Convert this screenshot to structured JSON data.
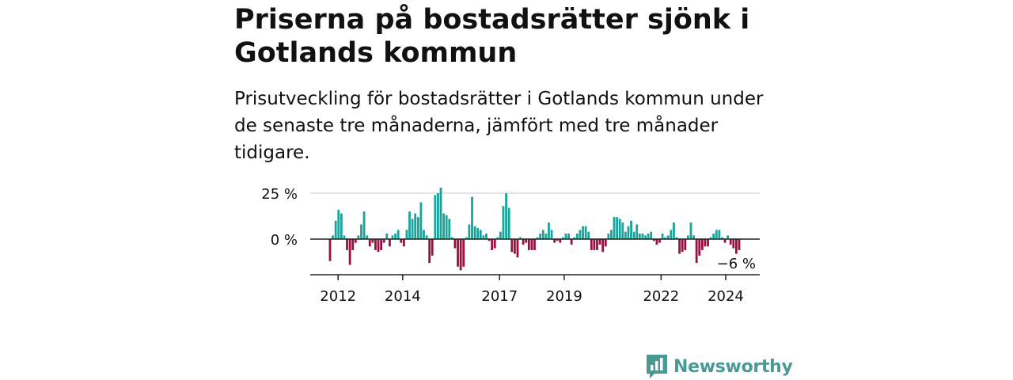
{
  "title": "Priserna på bostadsrätter sjönk i Gotlands kommun",
  "subtitle": "Prisutveckling för bostadsrätter i Gotlands kommun under de senaste tre månaderna, jämfört med tre månader tidigare.",
  "brand": {
    "name": "Newsworthy",
    "color": "#4a9a93",
    "icon": "newsworthy-logo-icon"
  },
  "chart_data": {
    "type": "bar",
    "x_start": "2011-10",
    "x_end": "2024-06",
    "x_ticks": [
      {
        "label": "2012",
        "x": 2012.0
      },
      {
        "label": "2014",
        "x": 2014.0
      },
      {
        "label": "2017",
        "x": 2017.0
      },
      {
        "label": "2019",
        "x": 2019.0
      },
      {
        "label": "2022",
        "x": 2022.0
      },
      {
        "label": "2024",
        "x": 2024.0
      }
    ],
    "y_ticks": [
      {
        "label": "25 %",
        "value": 25
      },
      {
        "label": "0 %",
        "value": 0
      }
    ],
    "ylim": [
      -20,
      27
    ],
    "last_value_label": "−6 %",
    "colors": {
      "positive": "#1aa39a",
      "negative": "#9b0f3f"
    },
    "values": [
      -12,
      2,
      10,
      16,
      14,
      2,
      -6,
      -14,
      -6,
      -2,
      2,
      8,
      15,
      2,
      -4,
      -2,
      -6,
      -7,
      -6,
      -2,
      3,
      -4,
      2,
      3,
      5,
      -2,
      -4,
      5,
      15,
      11,
      14,
      12,
      20,
      5,
      2,
      -13,
      -9,
      24,
      25,
      28,
      14,
      13,
      11,
      1,
      -5,
      -15,
      -17,
      -15,
      1,
      8,
      23,
      7,
      6,
      5,
      2,
      3,
      -1,
      -6,
      -5,
      1,
      4,
      18,
      25,
      17,
      -7,
      -8,
      -10,
      1,
      -3,
      -2,
      -6,
      -6,
      -6,
      1,
      3,
      5,
      3,
      9,
      5,
      -2,
      -1,
      -2,
      1,
      3,
      3,
      -3,
      1,
      3,
      5,
      7,
      7,
      4,
      -6,
      -6,
      -6,
      -3,
      -7,
      -4,
      3,
      5,
      12,
      12,
      11,
      9,
      4,
      7,
      10,
      4,
      8,
      3,
      3,
      2,
      3,
      4,
      -1,
      -3,
      -2,
      3,
      1,
      2,
      5,
      9,
      1,
      -8,
      -7,
      -6,
      2,
      9,
      2,
      -13,
      -9,
      -6,
      -4,
      -4,
      1,
      3,
      5,
      5,
      1,
      -2,
      2,
      -3,
      -5,
      -8,
      -6
    ]
  }
}
